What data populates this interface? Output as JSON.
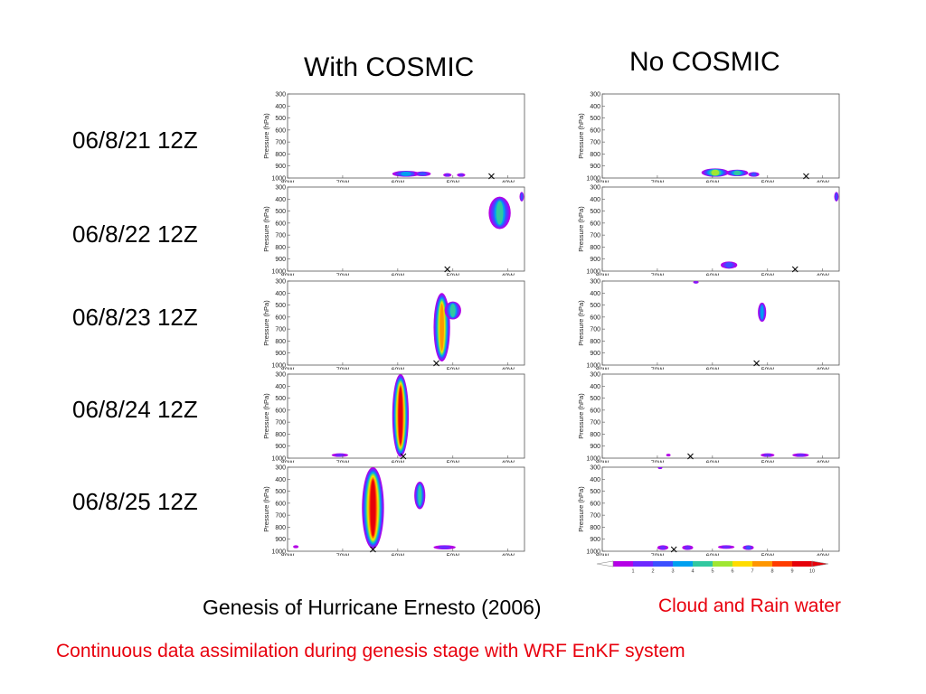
{
  "columns": [
    "With COSMIC",
    "No COSMIC"
  ],
  "rows": [
    "06/8/21 12Z",
    "06/8/22 12Z",
    "06/8/23 12Z",
    "06/8/24 12Z",
    "06/8/25 12Z"
  ],
  "caption": "Genesis of Hurricane Ernesto (2006)",
  "legend_caption": "Cloud and Rain water",
  "subtitle": "Continuous data assimilation during genesis stage with WRF EnKF system",
  "colors": {
    "text_red": "#e8000d",
    "scale": [
      "#ffffff",
      "#b400e6",
      "#6e28ff",
      "#3c50ff",
      "#00a0f0",
      "#32c8a0",
      "#a0e632",
      "#ffdc00",
      "#ff9600",
      "#ff3c00",
      "#e6000a"
    ]
  },
  "chart_data": {
    "type": "heatmap",
    "ylabel": "Pressure (hPa)",
    "y_ticks": [
      300,
      400,
      500,
      600,
      700,
      800,
      900,
      1000
    ],
    "y_tick_labels": [
      "300",
      "400",
      "500",
      "600",
      "700",
      "800",
      "900",
      "1000"
    ],
    "ylim": [
      1000,
      300
    ],
    "x_ticks": [
      -80,
      -70,
      -60,
      -50,
      -40
    ],
    "x_tick_labels": [
      "80W",
      "70W",
      "60W",
      "50W",
      "40W"
    ],
    "xlim": [
      -80,
      -37
    ],
    "colorbar_ticks": [
      1,
      2,
      3,
      4,
      5,
      6,
      7,
      8,
      9,
      10
    ],
    "colorbar_tick_labels": [
      "1",
      "2",
      "3",
      "4",
      "5",
      "6",
      "7",
      "8",
      "9",
      "10"
    ],
    "panels": [
      {
        "column": "With COSMIC",
        "row": "06/8/21 12Z",
        "marker_x": -43,
        "features": [
          {
            "x": -58.5,
            "p_top": 940,
            "p_bot": 990,
            "width": 5,
            "level": 4
          },
          {
            "x": -55.5,
            "p_top": 945,
            "p_bot": 985,
            "width": 3,
            "level": 3
          },
          {
            "x": -51,
            "p_top": 960,
            "p_bot": 990,
            "width": 1.5,
            "level": 2
          },
          {
            "x": -48.5,
            "p_top": 960,
            "p_bot": 990,
            "width": 1.5,
            "level": 2
          }
        ]
      },
      {
        "column": "No COSMIC",
        "row": "06/8/21 12Z",
        "marker_x": -43,
        "features": [
          {
            "x": -59.5,
            "p_top": 920,
            "p_bot": 990,
            "width": 5,
            "level": 6
          },
          {
            "x": -55.5,
            "p_top": 930,
            "p_bot": 985,
            "width": 4,
            "level": 5
          },
          {
            "x": -52.5,
            "p_top": 950,
            "p_bot": 990,
            "width": 2,
            "level": 3
          }
        ]
      },
      {
        "column": "With COSMIC",
        "row": "06/8/22 12Z",
        "marker_x": -51,
        "features": [
          {
            "x": -41.5,
            "p_top": 380,
            "p_bot": 650,
            "width": 4,
            "level": 5
          },
          {
            "x": -37.5,
            "p_top": 340,
            "p_bot": 420,
            "width": 0.8,
            "level": 3
          }
        ]
      },
      {
        "column": "No COSMIC",
        "row": "06/8/22 12Z",
        "marker_x": -45,
        "features": [
          {
            "x": -57,
            "p_top": 920,
            "p_bot": 980,
            "width": 3,
            "level": 3
          },
          {
            "x": -37.5,
            "p_top": 340,
            "p_bot": 420,
            "width": 0.8,
            "level": 3
          }
        ]
      },
      {
        "column": "With COSMIC",
        "row": "06/8/23 12Z",
        "marker_x": -53,
        "features": [
          {
            "x": -52,
            "p_top": 400,
            "p_bot": 970,
            "width": 3,
            "level": 8
          },
          {
            "x": -50,
            "p_top": 470,
            "p_bot": 620,
            "width": 3,
            "level": 5
          }
        ]
      },
      {
        "column": "No COSMIC",
        "row": "06/8/23 12Z",
        "marker_x": -52,
        "features": [
          {
            "x": -63,
            "p_top": 300,
            "p_bot": 320,
            "width": 1,
            "level": 2
          },
          {
            "x": -51,
            "p_top": 480,
            "p_bot": 640,
            "width": 1.5,
            "level": 4
          }
        ]
      },
      {
        "column": "With COSMIC",
        "row": "06/8/24 12Z",
        "marker_x": -59,
        "features": [
          {
            "x": -59.5,
            "p_top": 300,
            "p_bot": 990,
            "width": 3,
            "level": 10
          },
          {
            "x": -70.5,
            "p_top": 960,
            "p_bot": 990,
            "width": 3,
            "level": 2
          }
        ]
      },
      {
        "column": "No COSMIC",
        "row": "06/8/24 12Z",
        "marker_x": -64,
        "features": [
          {
            "x": -50,
            "p_top": 960,
            "p_bot": 990,
            "width": 2.5,
            "level": 2
          },
          {
            "x": -44,
            "p_top": 960,
            "p_bot": 990,
            "width": 3,
            "level": 2
          },
          {
            "x": -68,
            "p_top": 965,
            "p_bot": 985,
            "width": 0.8,
            "level": 1
          }
        ]
      },
      {
        "column": "With COSMIC",
        "row": "06/8/25 12Z",
        "marker_x": -64.5,
        "features": [
          {
            "x": -64.5,
            "p_top": 300,
            "p_bot": 980,
            "width": 4,
            "level": 10
          },
          {
            "x": -56,
            "p_top": 420,
            "p_bot": 650,
            "width": 2,
            "level": 5
          },
          {
            "x": -51.5,
            "p_top": 950,
            "p_bot": 985,
            "width": 4,
            "level": 2
          },
          {
            "x": -78.5,
            "p_top": 950,
            "p_bot": 975,
            "width": 1,
            "level": 1
          }
        ]
      },
      {
        "column": "No COSMIC",
        "row": "06/8/25 12Z",
        "marker_x": -67,
        "features": [
          {
            "x": -69,
            "p_top": 950,
            "p_bot": 990,
            "width": 2,
            "level": 2
          },
          {
            "x": -64.5,
            "p_top": 950,
            "p_bot": 990,
            "width": 2,
            "level": 2
          },
          {
            "x": -57.5,
            "p_top": 950,
            "p_bot": 980,
            "width": 3,
            "level": 2
          },
          {
            "x": -53.5,
            "p_top": 950,
            "p_bot": 990,
            "width": 2,
            "level": 3
          },
          {
            "x": -69.5,
            "p_top": 300,
            "p_bot": 310,
            "width": 0.8,
            "level": 2
          }
        ]
      }
    ]
  }
}
